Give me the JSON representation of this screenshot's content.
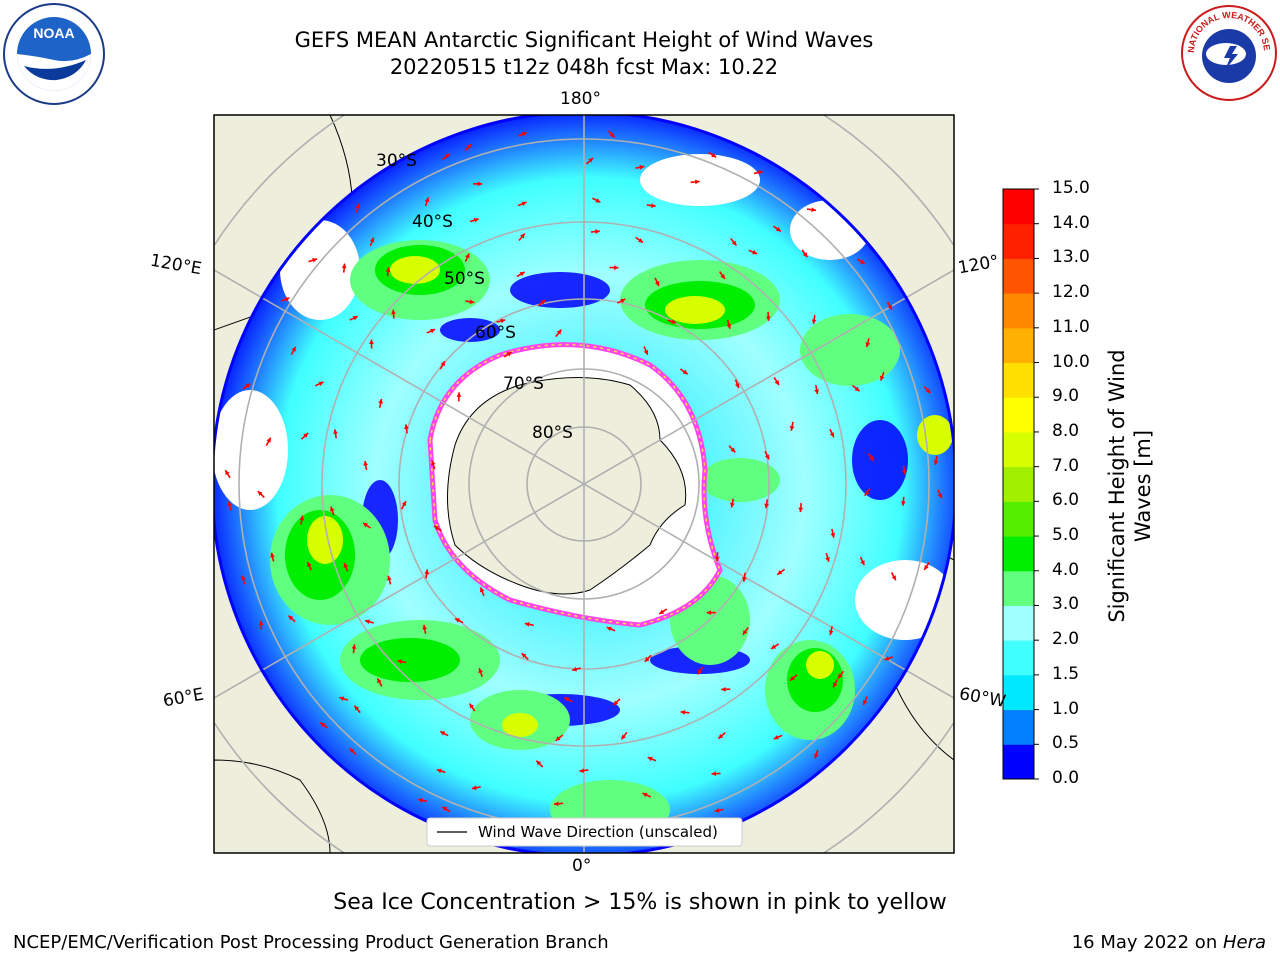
{
  "title": {
    "line1": "GEFS MEAN Antarctic Significant Height of Wind Waves",
    "line2": "20220515 t12z 048h fcst   Max: 10.22"
  },
  "map": {
    "projection": "south-polar-stereographic",
    "longitude_labels": [
      "180°",
      "120°E",
      "120°",
      "60°E",
      "60°W",
      "0°"
    ],
    "latitude_labels": [
      "30°S",
      "40°S",
      "50°S",
      "60°S",
      "70°S",
      "80°S"
    ],
    "legend_entry": "Wind Wave Direction (unscaled)",
    "arrow_color": "#ff0000",
    "land_color": "#eeeedd",
    "sea_ice_colors": [
      "#ff44ee",
      "#ffe040"
    ]
  },
  "colorbar": {
    "title": "Significant Height of Wind Waves [m]",
    "tick_labels": [
      "15.0",
      "14.0",
      "13.0",
      "12.0",
      "11.0",
      "10.0",
      "9.0",
      "8.0",
      "7.0",
      "6.0",
      "5.0",
      "4.0",
      "3.0",
      "2.0",
      "1.5",
      "1.0",
      "0.5",
      "0.0"
    ],
    "colors_bottom_to_top": [
      "#0000ff",
      "#0080ff",
      "#00e8ff",
      "#40ffff",
      "#a0ffff",
      "#60ff80",
      "#00ee00",
      "#55ee00",
      "#a0f000",
      "#d8ff00",
      "#ffff00",
      "#ffe000",
      "#ffb000",
      "#ff8800",
      "#ff5500",
      "#ff2000",
      "#ff0000"
    ]
  },
  "footnote": "Sea Ice Concentration > 15% is shown in pink to yellow",
  "footer": {
    "left": "NCEP/EMC/Verification Post Processing Product Generation Branch",
    "date": "16 May 2022 on ",
    "host": "Hera"
  },
  "logos": {
    "left": {
      "icon": "noaa-logo-icon",
      "text": "NOAA"
    },
    "right": {
      "icon": "nws-logo-icon",
      "text": "NATIONAL WEATHER SERVICE"
    }
  }
}
